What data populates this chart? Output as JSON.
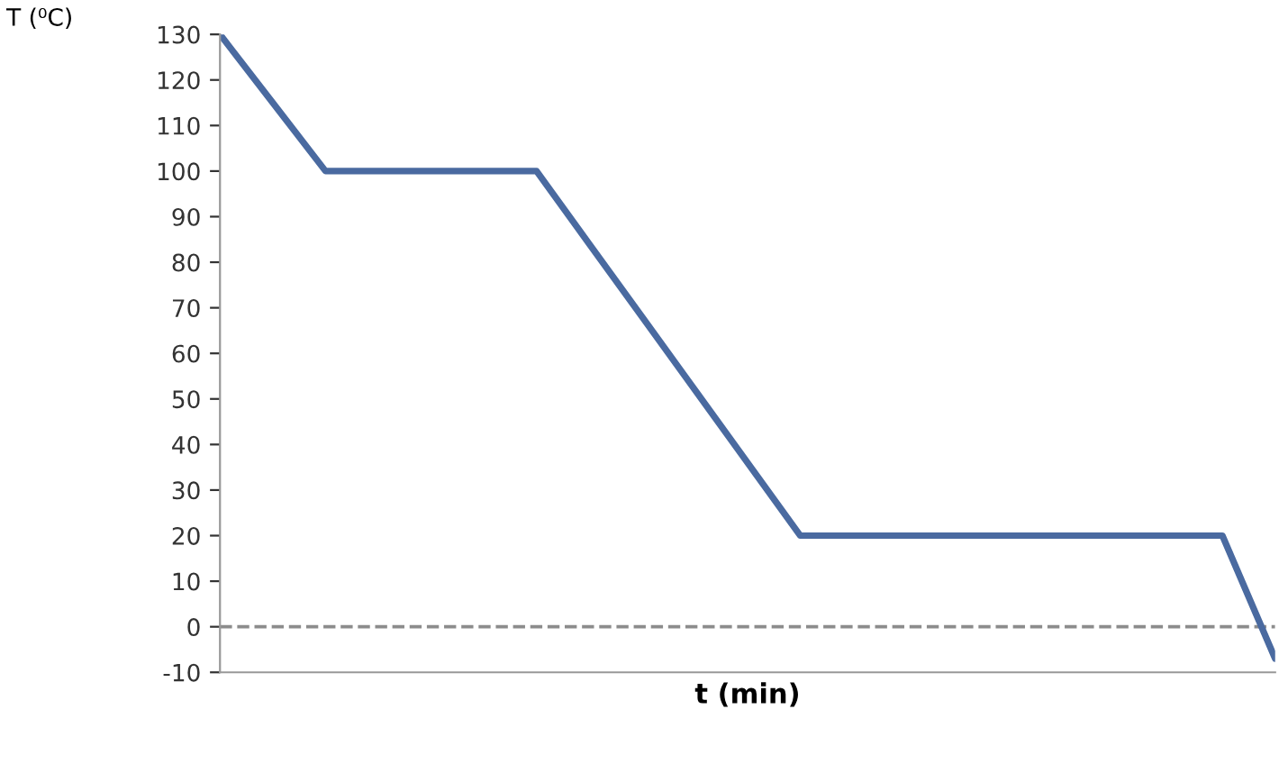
{
  "chart_data": {
    "type": "line",
    "xlabel": "t (min)",
    "ylabel": "T (⁰C)",
    "categories": [
      null,
      null,
      null,
      null,
      null,
      null,
      null,
      null,
      null,
      null,
      null,
      null,
      null,
      null,
      null,
      null,
      null,
      null,
      null,
      null,
      null
    ],
    "series": [
      {
        "color": "#4a6aa0",
        "values": [
          130,
          115,
          100,
          100,
          100,
          100,
          100,
          84,
          68,
          52,
          36,
          20,
          20,
          20,
          20,
          20,
          20,
          20,
          20,
          20,
          -7
        ]
      }
    ],
    "ylim": [
      -10,
      130
    ],
    "yticks": [
      -10,
      0,
      10,
      20,
      30,
      40,
      50,
      60,
      70,
      80,
      90,
      100,
      110,
      120,
      130
    ],
    "ref_lines": [
      {
        "axis": "y",
        "value": 0,
        "color": "#8c8c8c",
        "line_style": "dashed"
      }
    ],
    "grid": false,
    "legend": false,
    "tick_labels": "y",
    "marker": "none",
    "line_style": "solid"
  }
}
